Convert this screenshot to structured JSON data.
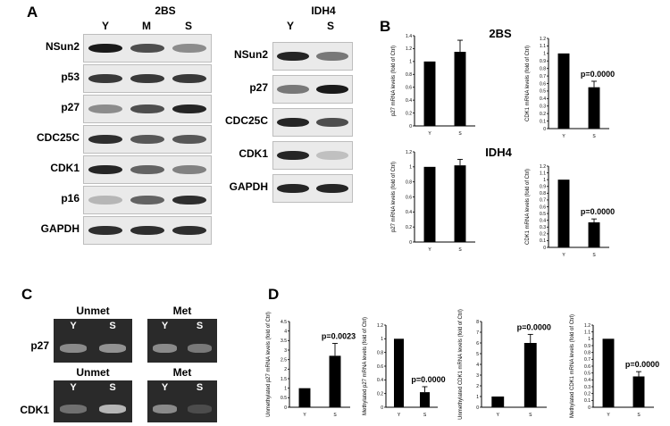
{
  "panels": {
    "A": {
      "letter": "A",
      "left": {
        "title": "2BS",
        "lanes": [
          "Y",
          "M",
          "S"
        ],
        "rows": [
          {
            "label": "NSun2",
            "intensity": [
              1.0,
              0.75,
              0.45
            ]
          },
          {
            "label": "p53",
            "intensity": [
              0.85,
              0.85,
              0.85
            ]
          },
          {
            "label": "p27",
            "intensity": [
              0.45,
              0.75,
              0.95
            ]
          },
          {
            "label": "CDC25C",
            "intensity": [
              0.9,
              0.7,
              0.7
            ]
          },
          {
            "label": "CDK1",
            "intensity": [
              0.95,
              0.65,
              0.5
            ]
          },
          {
            "label": "p16",
            "intensity": [
              0.25,
              0.65,
              0.9
            ]
          },
          {
            "label": "GAPDH",
            "intensity": [
              0.9,
              0.9,
              0.9
            ]
          }
        ]
      },
      "right": {
        "title": "IDH4",
        "lanes": [
          "Y",
          "S"
        ],
        "rows": [
          {
            "label": "NSun2",
            "intensity": [
              0.95,
              0.55
            ]
          },
          {
            "label": "p27",
            "intensity": [
              0.55,
              1.0
            ]
          },
          {
            "label": "CDC25C",
            "intensity": [
              0.95,
              0.75
            ]
          },
          {
            "label": "CDK1",
            "intensity": [
              0.95,
              0.2
            ]
          },
          {
            "label": "GAPDH",
            "intensity": [
              0.95,
              0.95
            ]
          }
        ]
      }
    },
    "B": {
      "letter": "B",
      "title_top": "2BS",
      "title_bottom": "IDH4"
    },
    "C": {
      "letter": "C",
      "row_labels": [
        "p27",
        "CDK1"
      ],
      "groups": [
        {
          "label": "Unmet",
          "lanes": [
            "Y",
            "S"
          ]
        },
        {
          "label": "Met",
          "lanes": [
            "Y",
            "S"
          ]
        },
        {
          "label": "Unmet",
          "lanes": [
            "Y",
            "S"
          ]
        },
        {
          "label": "Met",
          "lanes": [
            "Y",
            "S"
          ]
        }
      ]
    },
    "D": {
      "letter": "D"
    }
  },
  "chart_data": [
    {
      "id": "B1",
      "type": "bar",
      "categories": [
        "Y",
        "S"
      ],
      "values": [
        1.0,
        1.15
      ],
      "errors": [
        0,
        0.18
      ],
      "title": "",
      "xlabel": "",
      "ylabel": "p27 mRNA levels (fold of Ctrl)",
      "ylim": [
        0,
        1.4
      ],
      "yticks": [
        "0",
        "0.2",
        "0.4",
        "0.6",
        "0.8",
        "1",
        "1.2",
        "1.4"
      ],
      "annotation": ""
    },
    {
      "id": "B2",
      "type": "bar",
      "categories": [
        "Y",
        "S"
      ],
      "values": [
        1.0,
        0.55
      ],
      "errors": [
        0,
        0.08
      ],
      "title": "",
      "xlabel": "",
      "ylabel": "CDK1 mRNA levels (fold of Ctrl)",
      "ylim": [
        0,
        1.2
      ],
      "yticks": [
        "0",
        "0.1",
        "0.2",
        "0.3",
        "0.4",
        "0.5",
        "0.6",
        "0.7",
        "0.8",
        "0.9",
        "1",
        "1.1",
        "1.2"
      ],
      "annotation": "p=0.0000"
    },
    {
      "id": "B3",
      "type": "bar",
      "categories": [
        "Y",
        "S"
      ],
      "values": [
        1.0,
        1.02
      ],
      "errors": [
        0,
        0.08
      ],
      "title": "",
      "xlabel": "",
      "ylabel": "p27 mRNA levels (fold of Ctrl)",
      "ylim": [
        0,
        1.2
      ],
      "yticks": [
        "0",
        "0.2",
        "0.4",
        "0.6",
        "0.8",
        "1",
        "1.2"
      ],
      "annotation": ""
    },
    {
      "id": "B4",
      "type": "bar",
      "categories": [
        "Y",
        "S"
      ],
      "values": [
        1.0,
        0.37
      ],
      "errors": [
        0,
        0.05
      ],
      "title": "",
      "xlabel": "",
      "ylabel": "CDK1 mRNA levels (fold of Ctrl)",
      "ylim": [
        0,
        1.2
      ],
      "yticks": [
        "0",
        "0.1",
        "0.2",
        "0.3",
        "0.4",
        "0.5",
        "0.6",
        "0.7",
        "0.8",
        "0.9",
        "1",
        "1.1",
        "1.2"
      ],
      "annotation": "p=0.0000"
    },
    {
      "id": "D1",
      "type": "bar",
      "categories": [
        "Y",
        "S"
      ],
      "values": [
        1.0,
        2.7
      ],
      "errors": [
        0,
        0.65
      ],
      "title": "",
      "xlabel": "",
      "ylabel": "Unmethylated p27 mRNA levels (fold of Ctrl)",
      "ylim": [
        0,
        4.5
      ],
      "yticks": [
        "0",
        "0.5",
        "1",
        "1.5",
        "2",
        "2.5",
        "3",
        "3.5",
        "4",
        "4.5"
      ],
      "annotation": "p=0.0023"
    },
    {
      "id": "D2",
      "type": "bar",
      "categories": [
        "Y",
        "S"
      ],
      "values": [
        1.0,
        0.22
      ],
      "errors": [
        0,
        0.08
      ],
      "title": "",
      "xlabel": "",
      "ylabel": "Methylated p27 mRNA levels (fold of Ctrl)",
      "ylim": [
        0,
        1.2
      ],
      "yticks": [
        "0",
        "0.2",
        "0.4",
        "0.6",
        "0.8",
        "1",
        "1.2"
      ],
      "annotation": "p=0.0000"
    },
    {
      "id": "D3",
      "type": "bar",
      "categories": [
        "Y",
        "S"
      ],
      "values": [
        1.0,
        6.0
      ],
      "errors": [
        0,
        0.8
      ],
      "title": "",
      "xlabel": "",
      "ylabel": "Unmethylated CDK1 mRNA levels (fold of Ctrl)",
      "ylim": [
        0,
        8
      ],
      "yticks": [
        "0",
        "1",
        "2",
        "3",
        "4",
        "5",
        "6",
        "7",
        "8"
      ],
      "annotation": "p=0.0000"
    },
    {
      "id": "D4",
      "type": "bar",
      "categories": [
        "Y",
        "S"
      ],
      "values": [
        1.0,
        0.45
      ],
      "errors": [
        0,
        0.07
      ],
      "title": "",
      "xlabel": "",
      "ylabel": "Methylated CDK1 mRNA levels (fold of Ctrl)",
      "ylim": [
        0,
        1.2
      ],
      "yticks": [
        "0",
        "0.1",
        "0.2",
        "0.3",
        "0.4",
        "0.5",
        "0.6",
        "0.7",
        "0.8",
        "0.9",
        "1",
        "1.1",
        "1.2"
      ],
      "annotation": "p=0.0000"
    }
  ]
}
